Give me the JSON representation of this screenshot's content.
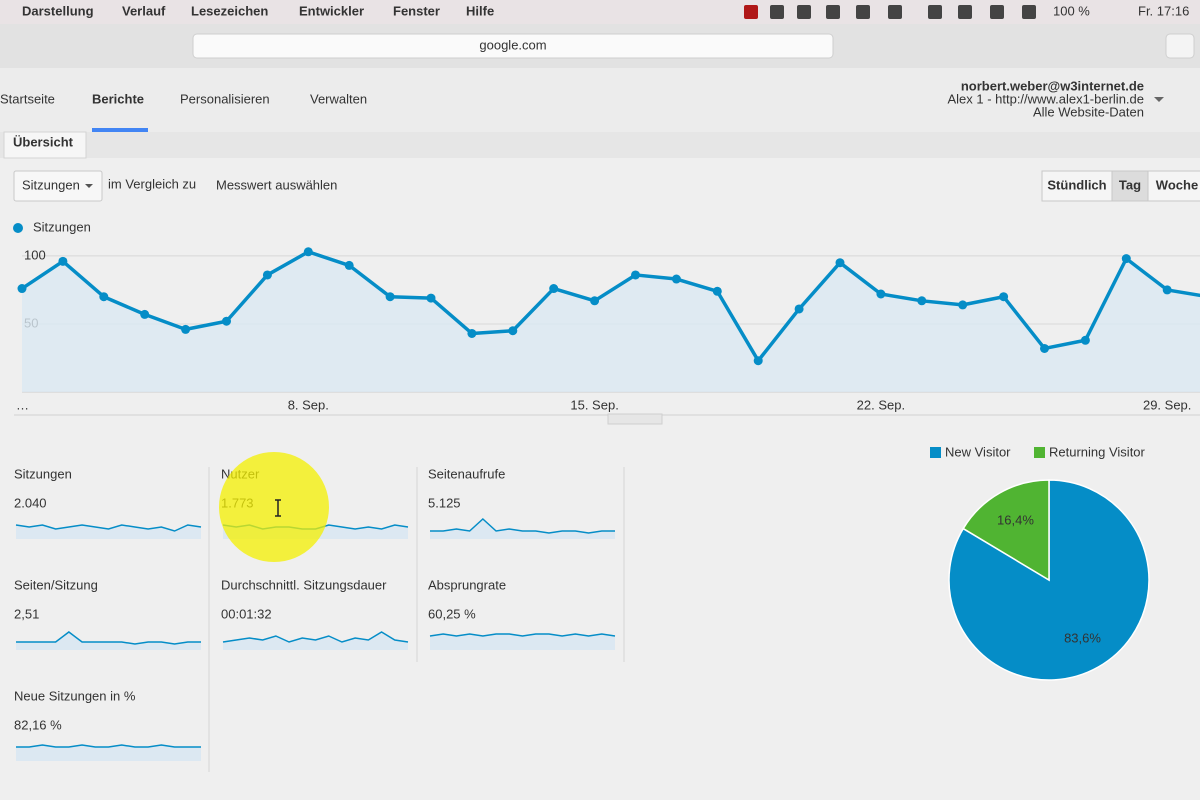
{
  "menubar": {
    "items": [
      "Darstellung",
      "Verlauf",
      "Lesezeichen",
      "Entwickler",
      "Fenster",
      "Hilfe"
    ],
    "battery": "100 %",
    "clock": "Fr. 17:16"
  },
  "browser": {
    "url": "google.com"
  },
  "nav": {
    "tabs": [
      "Startseite",
      "Berichte",
      "Personalisieren",
      "Verwalten"
    ]
  },
  "account": {
    "email": "norbert.weber@w3internet.de",
    "property": "Alex 1 - http://www.alex1-berlin.de",
    "view": "Alle Website-Daten"
  },
  "report": {
    "tab": "Übersicht",
    "metric_select": "Sitzungen",
    "compare_text": "im Vergleich zu",
    "compare_link": "Messwert auswählen",
    "granularity": [
      "Stündlich",
      "Tag",
      "Woche"
    ]
  },
  "metrics": [
    {
      "label": "Sitzungen",
      "value": "2.040",
      "spark": [
        6,
        5,
        6,
        4,
        5,
        6,
        5,
        4,
        6,
        5,
        4,
        5,
        3,
        6,
        5
      ]
    },
    {
      "label": "Nutzer",
      "value": "1.773",
      "spark": [
        6,
        5,
        6,
        4,
        5,
        5,
        4,
        4,
        6,
        5,
        4,
        5,
        4,
        6,
        5
      ]
    },
    {
      "label": "Seitenaufrufe",
      "value": "5.125",
      "spark": [
        3,
        3,
        4,
        3,
        9,
        3,
        4,
        3,
        3,
        2,
        3,
        3,
        2,
        3,
        3
      ]
    },
    {
      "label": "Seiten/Sitzung",
      "value": "2,51",
      "spark": [
        3,
        3,
        3,
        3,
        8,
        3,
        3,
        3,
        3,
        2,
        3,
        3,
        2,
        3,
        3
      ]
    },
    {
      "label": "Durchschnittl. Sitzungsdauer",
      "value": "00:01:32",
      "spark": [
        3,
        4,
        5,
        4,
        6,
        3,
        5,
        4,
        6,
        3,
        5,
        4,
        8,
        4,
        3
      ]
    },
    {
      "label": "Absprungrate",
      "value": "60,25 %",
      "spark": [
        6,
        7,
        6,
        7,
        6,
        7,
        7,
        6,
        7,
        7,
        6,
        7,
        6,
        7,
        6
      ]
    },
    {
      "label": "Neue Sitzungen in %",
      "value": "82,16 %",
      "spark": [
        6,
        6,
        7,
        6,
        6,
        7,
        6,
        6,
        7,
        6,
        6,
        7,
        6,
        6,
        6
      ]
    }
  ],
  "chart_data": [
    {
      "type": "line",
      "categories": [
        "…",
        null,
        null,
        null,
        null,
        null,
        null,
        "8. Sep.",
        null,
        null,
        null,
        null,
        null,
        null,
        "15. Sep.",
        null,
        null,
        null,
        null,
        null,
        null,
        "22. Sep.",
        null,
        null,
        null,
        null,
        null,
        null,
        "29. Sep.",
        null
      ],
      "series": [
        {
          "name": "Sitzungen",
          "color": "#058dc7",
          "values": [
            76,
            96,
            70,
            57,
            46,
            52,
            86,
            103,
            93,
            70,
            69,
            43,
            45,
            76,
            67,
            86,
            83,
            74,
            23,
            61,
            95,
            72,
            67,
            64,
            70,
            32,
            38,
            98,
            75,
            70
          ]
        }
      ],
      "ylim": [
        0,
        108
      ],
      "yticks": [
        50,
        100
      ],
      "grid": true
    },
    {
      "type": "pie",
      "categories": [
        "New Visitor",
        "Returning Visitor"
      ],
      "values": [
        83.6,
        16.4
      ],
      "value_labels": [
        "83,6%",
        "16,4%"
      ],
      "colors": [
        "#058dc7",
        "#50b432"
      ]
    }
  ]
}
